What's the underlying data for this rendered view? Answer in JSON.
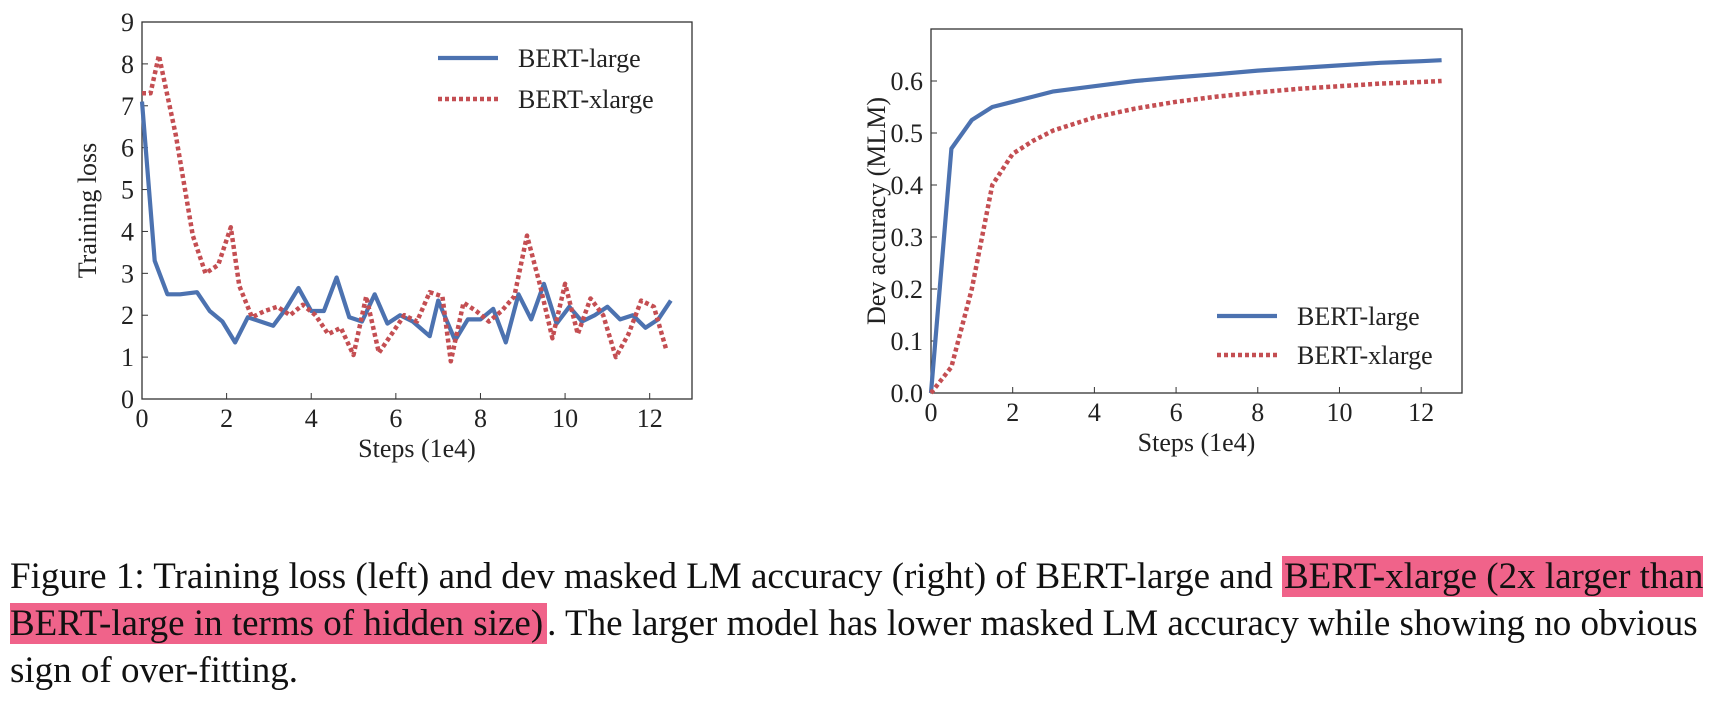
{
  "chart_data": [
    {
      "type": "line",
      "position_word": "left",
      "xlabel": "Steps (1e4)",
      "ylabel": "Training loss",
      "xlim": [
        0,
        13
      ],
      "ylim": [
        0,
        9
      ],
      "xticks": [
        0,
        2,
        4,
        6,
        8,
        10,
        12
      ],
      "yticks": [
        0,
        1,
        2,
        3,
        4,
        5,
        6,
        7,
        8,
        9
      ],
      "grid": false,
      "legend": "top-right",
      "series": [
        {
          "name": "BERT-large",
          "style": "solid",
          "color": "#4c72b0",
          "x": [
            0,
            0.3,
            0.6,
            0.9,
            1.3,
            1.6,
            1.9,
            2.2,
            2.5,
            2.8,
            3.1,
            3.4,
            3.7,
            4.0,
            4.3,
            4.6,
            4.9,
            5.2,
            5.5,
            5.8,
            6.1,
            6.4,
            6.8,
            7.0,
            7.4,
            7.7,
            8.0,
            8.3,
            8.6,
            8.9,
            9.2,
            9.5,
            9.8,
            10.1,
            10.4,
            10.7,
            11.0,
            11.3,
            11.6,
            11.9,
            12.2,
            12.5
          ],
          "y": [
            7.1,
            3.3,
            2.5,
            2.5,
            2.55,
            2.1,
            1.85,
            1.35,
            1.95,
            1.85,
            1.75,
            2.15,
            2.65,
            2.1,
            2.1,
            2.9,
            1.95,
            1.85,
            2.5,
            1.8,
            2.0,
            1.85,
            1.5,
            2.35,
            1.4,
            1.9,
            1.9,
            2.15,
            1.35,
            2.5,
            1.9,
            2.75,
            1.8,
            2.2,
            1.85,
            2.0,
            2.2,
            1.9,
            2.0,
            1.7,
            1.9,
            2.35
          ]
        },
        {
          "name": "BERT-xlarge",
          "style": "dotted",
          "color": "#c44e52",
          "x": [
            0,
            0.2,
            0.4,
            0.8,
            1.2,
            1.5,
            1.8,
            2.1,
            2.3,
            2.6,
            2.9,
            3.2,
            3.5,
            3.8,
            4.1,
            4.4,
            4.7,
            5.0,
            5.3,
            5.6,
            5.9,
            6.2,
            6.5,
            6.8,
            7.1,
            7.3,
            7.6,
            7.9,
            8.2,
            8.5,
            8.8,
            9.1,
            9.4,
            9.7,
            10.0,
            10.3,
            10.6,
            10.9,
            11.2,
            11.5,
            11.8,
            12.1,
            12.4
          ],
          "y": [
            7.3,
            7.3,
            8.2,
            6.3,
            3.9,
            3.0,
            3.2,
            4.1,
            2.7,
            1.95,
            2.1,
            2.2,
            2.0,
            2.25,
            2.0,
            1.55,
            1.7,
            1.05,
            2.45,
            1.1,
            1.55,
            2.0,
            1.85,
            2.55,
            2.45,
            0.9,
            2.3,
            2.1,
            1.85,
            2.1,
            2.45,
            3.9,
            2.75,
            1.45,
            2.75,
            1.55,
            2.4,
            2.0,
            1.0,
            1.55,
            2.35,
            2.2,
            1.15
          ]
        }
      ]
    },
    {
      "type": "line",
      "position_word": "right",
      "xlabel": "Steps (1e4)",
      "ylabel": "Dev accuracy (MLM)",
      "xlim": [
        0,
        13
      ],
      "ylim": [
        0,
        0.7
      ],
      "xticks": [
        0,
        2,
        4,
        6,
        8,
        10,
        12
      ],
      "yticks": [
        0.0,
        0.1,
        0.2,
        0.3,
        0.4,
        0.5,
        0.6
      ],
      "ytick_labels": [
        "0.0",
        "0.1",
        "0.2",
        "0.3",
        "0.4",
        "0.5",
        "0.6"
      ],
      "grid": false,
      "legend": "bottom-right",
      "series": [
        {
          "name": "BERT-large",
          "style": "solid",
          "color": "#4c72b0",
          "x": [
            0,
            0.5,
            1.0,
            1.5,
            2.0,
            2.5,
            3.0,
            3.5,
            4.0,
            5.0,
            6.0,
            7.0,
            8.0,
            9.0,
            10.0,
            11.0,
            12.0,
            12.5
          ],
          "y": [
            0.0,
            0.47,
            0.525,
            0.55,
            0.56,
            0.57,
            0.58,
            0.585,
            0.59,
            0.6,
            0.607,
            0.613,
            0.62,
            0.625,
            0.63,
            0.635,
            0.638,
            0.64
          ]
        },
        {
          "name": "BERT-xlarge",
          "style": "dotted",
          "color": "#c44e52",
          "x": [
            0,
            0.5,
            1.0,
            1.5,
            2.0,
            2.5,
            3.0,
            4.0,
            5.0,
            6.0,
            7.0,
            8.0,
            9.0,
            10.0,
            11.0,
            12.0,
            12.5
          ],
          "y": [
            0.0,
            0.05,
            0.2,
            0.4,
            0.46,
            0.485,
            0.505,
            0.53,
            0.547,
            0.56,
            0.57,
            0.578,
            0.585,
            0.59,
            0.595,
            0.598,
            0.6
          ]
        }
      ]
    }
  ],
  "caption": {
    "part1": "Figure 1: Training loss (left) and dev masked LM accuracy (right) of BERT-large and ",
    "highlight": "BERT-xlarge (2x larger than BERT-large in terms of hidden size)",
    "part2": ". The larger model has lower masked LM accuracy while showing no obvious sign of over-fitting.",
    "highlight_color": "#f0638a"
  }
}
